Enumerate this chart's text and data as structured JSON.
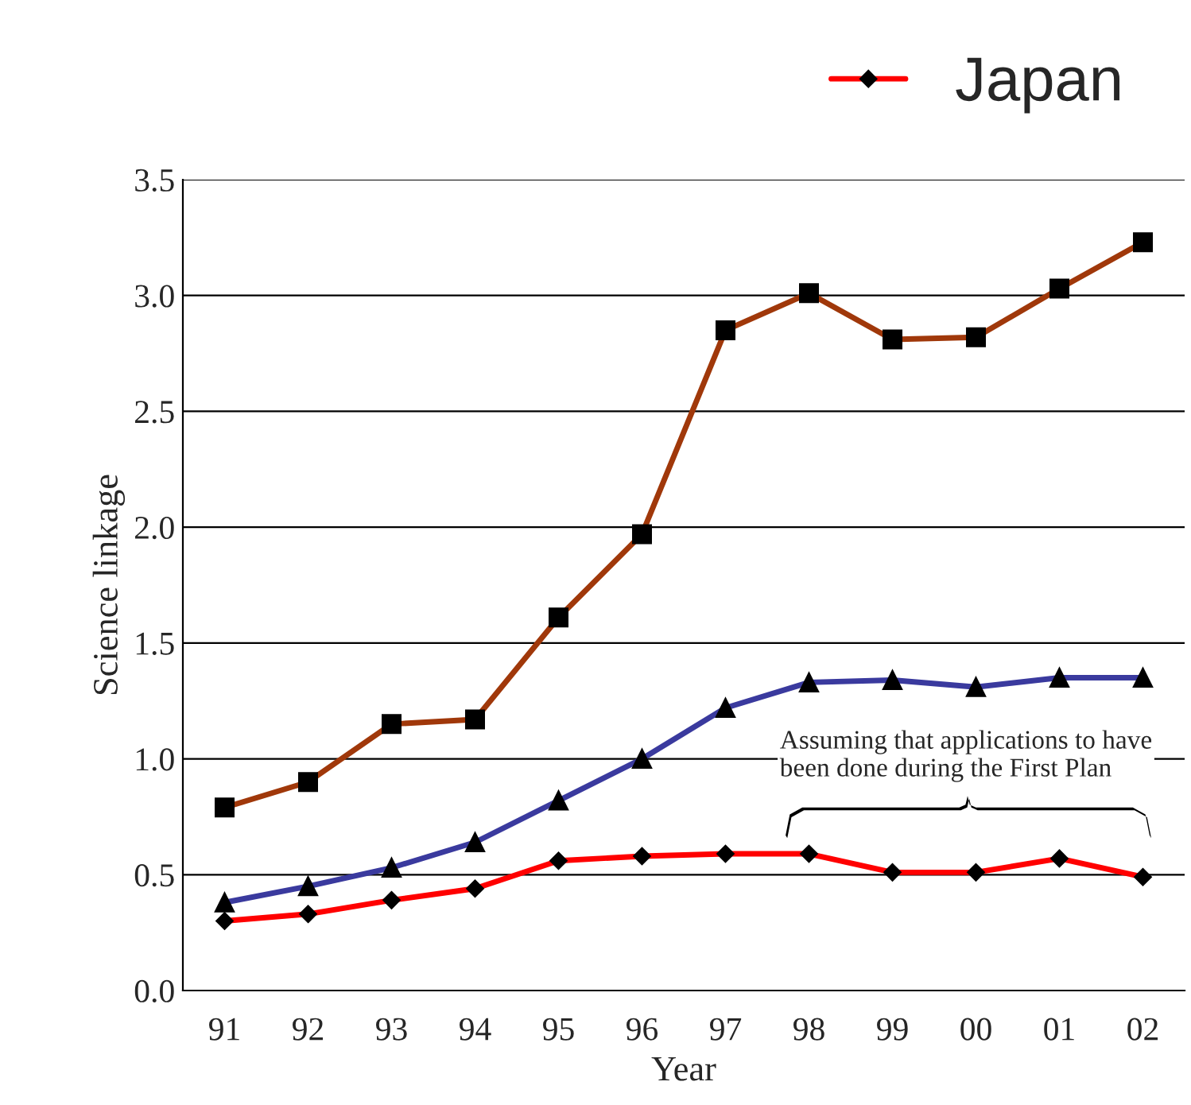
{
  "chart_data": {
    "type": "line",
    "xlabel": "Year",
    "ylabel": "Science linkage",
    "categories": [
      "91",
      "92",
      "93",
      "94",
      "95",
      "96",
      "97",
      "98",
      "99",
      "00",
      "01",
      "02"
    ],
    "series": [
      {
        "color": "#a0380a",
        "marker": "square",
        "values": [
          0.79,
          0.9,
          1.15,
          1.17,
          1.61,
          1.97,
          2.85,
          3.01,
          2.81,
          2.82,
          3.03,
          3.23
        ]
      },
      {
        "color": "#3a3a9e",
        "marker": "triangle",
        "values": [
          0.38,
          0.45,
          0.53,
          0.64,
          0.82,
          1.0,
          1.22,
          1.33,
          1.34,
          1.31,
          1.35,
          1.35
        ]
      },
      {
        "name": "Japan",
        "color": "#ff0000",
        "marker": "diamond",
        "values": [
          0.3,
          0.33,
          0.39,
          0.44,
          0.56,
          0.58,
          0.59,
          0.59,
          0.51,
          0.51,
          0.57,
          0.49
        ]
      }
    ],
    "ylim": [
      0,
      3.5
    ],
    "yticks": [
      {
        "value": 0,
        "label": "0.0"
      },
      {
        "value": 0.5,
        "label": "0.5"
      },
      {
        "value": 1,
        "label": "1.0"
      },
      {
        "value": 1.5,
        "label": "1.5"
      },
      {
        "value": 2,
        "label": "2.0"
      },
      {
        "value": 2.5,
        "label": "2.5"
      },
      {
        "value": 3,
        "label": "3.0"
      },
      {
        "value": 3.5,
        "label": "3.5"
      }
    ],
    "grid": "y",
    "legend": "top right",
    "annotations": [
      "Assuming that applications to have been done during the First Plan"
    ]
  }
}
